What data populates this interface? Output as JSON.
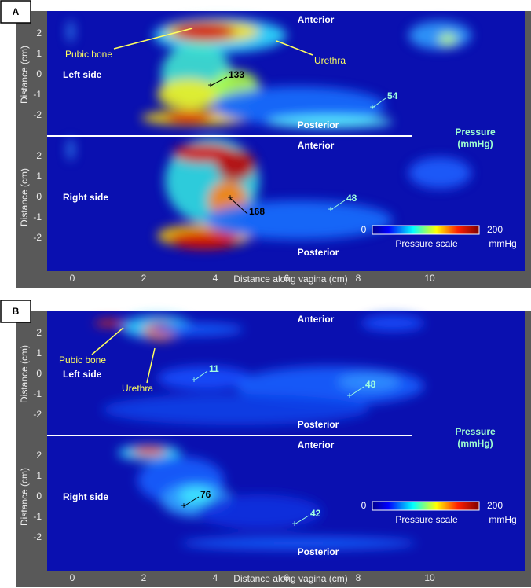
{
  "panels": [
    {
      "label": "A",
      "x_axis_label": "Distance along vagina (cm)",
      "x_ticks": [
        0,
        2,
        4,
        6,
        8,
        10
      ],
      "halves": [
        {
          "y_axis_label": "Distance (cm)",
          "y_ticks": [
            2,
            1,
            0,
            -1,
            -2
          ],
          "side": "Left side",
          "anterior": "Anterior",
          "posterior": "Posterior",
          "peak": 133,
          "low": 54
        },
        {
          "y_axis_label": "Distance (cm)",
          "y_ticks": [
            2,
            1,
            0,
            -1,
            -2
          ],
          "side": "Right side",
          "anterior": "Anterior",
          "posterior": "Posterior",
          "peak": 168,
          "low": 48
        }
      ],
      "annotations": [
        "Pubic bone",
        "Urethra"
      ],
      "legend": {
        "title": "Pressure",
        "unit": "(mmHg)",
        "min": 0,
        "max": 200,
        "scale_label": "Pressure scale",
        "scale_unit": "mmHg"
      }
    },
    {
      "label": "B",
      "x_axis_label": "Distance along vagina (cm)",
      "x_ticks": [
        0,
        2,
        4,
        6,
        8,
        10
      ],
      "halves": [
        {
          "y_axis_label": "Distance (cm)",
          "y_ticks": [
            2,
            1,
            0,
            -1,
            -2
          ],
          "side": "Left side",
          "anterior": "Anterior",
          "posterior": "Posterior",
          "peak": 11,
          "low": 48
        },
        {
          "y_axis_label": "Distance (cm)",
          "y_ticks": [
            2,
            1,
            0,
            -1,
            -2
          ],
          "side": "Right side",
          "anterior": "Anterior",
          "posterior": "Posterior",
          "peak": 76,
          "low": 42
        }
      ],
      "annotations": [
        "Pubic bone",
        "Urethra"
      ],
      "legend": {
        "title": "Pressure",
        "unit": "(mmHg)",
        "min": 0,
        "max": 200,
        "scale_label": "Pressure scale",
        "scale_unit": "mmHg"
      }
    }
  ]
}
